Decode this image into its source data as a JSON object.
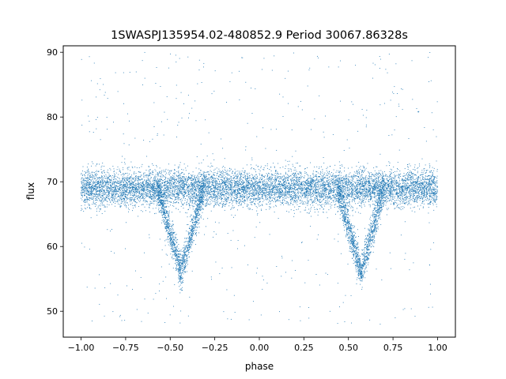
{
  "chart_data": {
    "type": "scatter",
    "title": "1SWASPJ135954.02-480852.9 Period 30067.86328s",
    "xlabel": "phase",
    "ylabel": "flux",
    "xlim": [
      -1.1,
      1.1
    ],
    "ylim": [
      46,
      91
    ],
    "x_ticks": [
      -1.0,
      -0.75,
      -0.5,
      -0.25,
      0.0,
      0.25,
      0.5,
      0.75,
      1.0
    ],
    "x_tick_labels": [
      "−1.00",
      "−0.75",
      "−0.50",
      "−0.25",
      "0.00",
      "0.25",
      "0.50",
      "0.75",
      "1.00"
    ],
    "y_ticks": [
      50,
      60,
      70,
      80,
      90
    ],
    "y_tick_labels": [
      "50",
      "60",
      "70",
      "80",
      "90"
    ],
    "grid": false,
    "legend": "none",
    "point_color": "#1f77b4",
    "series": [
      {
        "phase_range": [
          -1.0,
          1.0
        ],
        "baseline_flux": 69,
        "baseline_scatter": 2.5,
        "eclipses": [
          {
            "phase_center": -0.44,
            "min_flux": 56,
            "width": 0.26
          },
          {
            "phase_center": 0.57,
            "min_flux": 56,
            "width": 0.26
          }
        ],
        "outlier_flux_range": [
          48,
          90
        ]
      }
    ]
  }
}
